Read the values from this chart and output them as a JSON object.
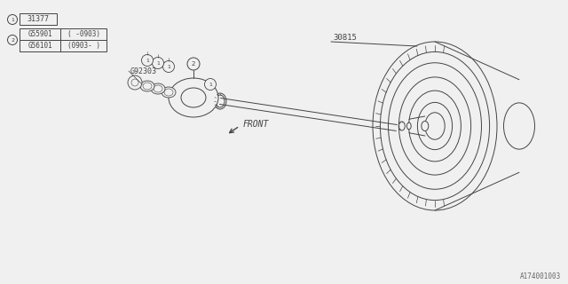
{
  "bg_color": "#f0f0f0",
  "part_label_1": "31377",
  "part_label_2_row1": "G55901",
  "part_label_2_row1_note": "( -0903)",
  "part_label_2_row2": "G56101",
  "part_label_2_row2_note": "(0903- )",
  "part_label_3": "30815",
  "part_label_4": "G92303",
  "front_label": "FRONT",
  "doc_number": "A174001003",
  "line_color": "#444444",
  "bg_hex": "#f0f0f0"
}
